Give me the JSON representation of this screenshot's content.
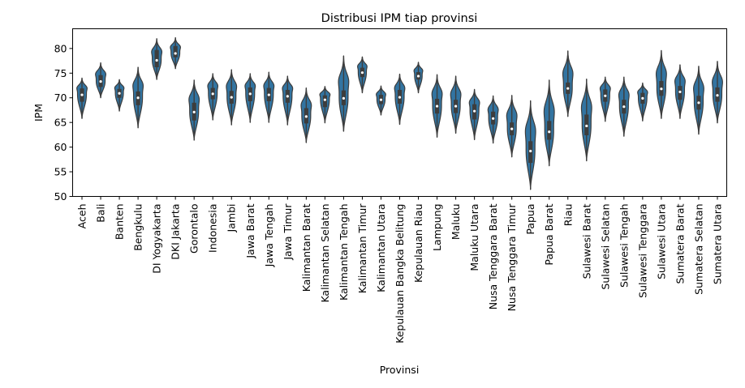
{
  "chart_data": {
    "type": "violin",
    "title": "Distribusi IPM tiap provinsi",
    "xlabel": "Provinsi",
    "ylabel": "IPM",
    "ylim": [
      50,
      84
    ],
    "yticks": [
      50,
      55,
      60,
      65,
      70,
      75,
      80
    ],
    "grid": false,
    "legend": "none",
    "violin_color": "#3274a1",
    "box_color": "#3d3d3d",
    "categories": [
      "Aceh",
      "Bali",
      "Banten",
      "Bengkulu",
      "DI Yogyakarta",
      "DKI Jakarta",
      "Gorontalo",
      "Indonesia",
      "Jambi",
      "Jawa Barat",
      "Jawa Tengah",
      "Jawa Timur",
      "Kalimantan Barat",
      "Kalimantan Selatan",
      "Kalimantan Tengah",
      "Kalimantan Timur",
      "Kalimantan Utara",
      "Kepulauan Bangka Belitung",
      "Kepulauan Riau",
      "Lampung",
      "Maluku",
      "Maluku Utara",
      "Nusa Tenggara Barat",
      "Nusa Tenggara Timur",
      "Papua",
      "Papua Barat",
      "Riau",
      "Sulawesi Barat",
      "Sulawesi Selatan",
      "Sulawesi Tengah",
      "Sulawesi Tenggara",
      "Sulawesi Utara",
      "Sumatera Barat",
      "Sumatera Selatan",
      "Sumatera Utara"
    ],
    "violins": [
      {
        "min": 65.8,
        "max": 74.0,
        "q1": 69.2,
        "median": 70.6,
        "q3": 71.9
      },
      {
        "min": 70.0,
        "max": 77.1,
        "q1": 72.2,
        "median": 73.3,
        "q3": 74.6
      },
      {
        "min": 67.3,
        "max": 73.7,
        "q1": 70.0,
        "median": 70.9,
        "q3": 71.8
      },
      {
        "min": 63.9,
        "max": 76.2,
        "q1": 68.5,
        "median": 70.0,
        "q3": 71.3
      },
      {
        "min": 73.7,
        "max": 82.0,
        "q1": 76.2,
        "median": 77.6,
        "q3": 79.7
      },
      {
        "min": 75.9,
        "max": 82.2,
        "q1": 78.2,
        "median": 79.0,
        "q3": 80.5
      },
      {
        "min": 61.4,
        "max": 73.6,
        "q1": 65.4,
        "median": 67.1,
        "q3": 69.0
      },
      {
        "min": 65.5,
        "max": 74.9,
        "q1": 69.7,
        "median": 70.8,
        "q3": 72.0
      },
      {
        "min": 64.5,
        "max": 75.7,
        "q1": 68.8,
        "median": 70.1,
        "q3": 71.4
      },
      {
        "min": 65.0,
        "max": 74.9,
        "q1": 69.3,
        "median": 70.8,
        "q3": 72.1
      },
      {
        "min": 65.0,
        "max": 75.2,
        "q1": 69.3,
        "median": 70.6,
        "q3": 72.0
      },
      {
        "min": 64.5,
        "max": 74.4,
        "q1": 69.0,
        "median": 70.3,
        "q3": 71.6
      },
      {
        "min": 60.9,
        "max": 72.0,
        "q1": 64.8,
        "median": 66.2,
        "q3": 67.9
      },
      {
        "min": 64.9,
        "max": 72.3,
        "q1": 68.1,
        "median": 69.6,
        "q3": 70.5
      },
      {
        "min": 63.2,
        "max": 78.5,
        "q1": 68.5,
        "median": 69.9,
        "q3": 71.5
      },
      {
        "min": 71.0,
        "max": 78.3,
        "q1": 74.2,
        "median": 75.1,
        "q3": 76.1
      },
      {
        "min": 66.5,
        "max": 72.4,
        "q1": 68.7,
        "median": 69.6,
        "q3": 70.6
      },
      {
        "min": 64.6,
        "max": 74.8,
        "q1": 68.8,
        "median": 70.1,
        "q3": 71.6
      },
      {
        "min": 71.0,
        "max": 77.2,
        "q1": 73.7,
        "median": 74.4,
        "q3": 75.2
      },
      {
        "min": 62.0,
        "max": 74.7,
        "q1": 66.8,
        "median": 68.3,
        "q3": 69.8
      },
      {
        "min": 62.8,
        "max": 74.4,
        "q1": 66.9,
        "median": 68.3,
        "q3": 69.6
      },
      {
        "min": 61.5,
        "max": 71.7,
        "q1": 65.6,
        "median": 67.3,
        "q3": 68.7
      },
      {
        "min": 60.8,
        "max": 70.4,
        "q1": 64.6,
        "median": 65.8,
        "q3": 67.2
      },
      {
        "min": 58.0,
        "max": 70.5,
        "q1": 62.4,
        "median": 63.7,
        "q3": 65.0
      },
      {
        "min": 51.4,
        "max": 69.4,
        "q1": 56.8,
        "median": 59.2,
        "q3": 61.2
      },
      {
        "min": 56.2,
        "max": 73.6,
        "q1": 61.5,
        "median": 63.1,
        "q3": 65.3
      },
      {
        "min": 66.2,
        "max": 79.5,
        "q1": 70.8,
        "median": 71.9,
        "q3": 73.1
      },
      {
        "min": 57.2,
        "max": 73.8,
        "q1": 62.4,
        "median": 64.3,
        "q3": 66.6
      },
      {
        "min": 65.2,
        "max": 74.2,
        "q1": 69.2,
        "median": 70.4,
        "q3": 71.7
      },
      {
        "min": 62.2,
        "max": 74.2,
        "q1": 66.8,
        "median": 68.2,
        "q3": 69.6
      },
      {
        "min": 65.3,
        "max": 73.0,
        "q1": 68.8,
        "median": 69.9,
        "q3": 71.0
      },
      {
        "min": 65.8,
        "max": 79.6,
        "q1": 70.4,
        "median": 71.8,
        "q3": 73.4
      },
      {
        "min": 65.8,
        "max": 76.7,
        "q1": 69.6,
        "median": 71.2,
        "q3": 72.4
      },
      {
        "min": 62.6,
        "max": 76.4,
        "q1": 67.6,
        "median": 69.0,
        "q3": 70.4
      },
      {
        "min": 64.9,
        "max": 77.4,
        "q1": 69.2,
        "median": 70.5,
        "q3": 72.1
      }
    ]
  }
}
